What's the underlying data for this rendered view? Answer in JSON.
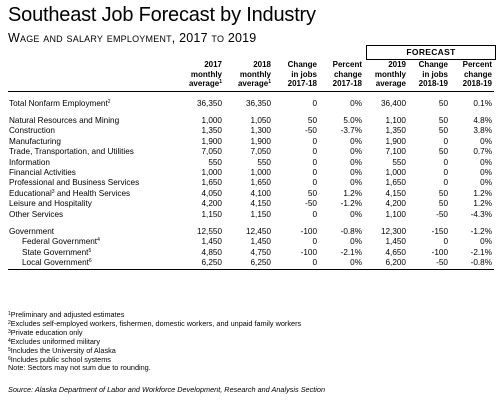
{
  "title": "Southeast Job Forecast by Industry",
  "subtitle": "Wage and salary employment, 2017 to 2019",
  "forecast_label": "FORECAST",
  "columns": [
    {
      "lines": [
        "2017",
        "monthly",
        "average"
      ],
      "sup": "1"
    },
    {
      "lines": [
        "2018",
        "monthly",
        "average"
      ],
      "sup": "1"
    },
    {
      "lines": [
        "Change",
        "in jobs",
        "2017-18"
      ],
      "sup": ""
    },
    {
      "lines": [
        "Percent",
        "change",
        "2017-18"
      ],
      "sup": ""
    },
    {
      "lines": [
        "2019",
        "monthly",
        "average"
      ],
      "sup": ""
    },
    {
      "lines": [
        "Change",
        "in jobs",
        "2018-19"
      ],
      "sup": ""
    },
    {
      "lines": [
        "Percent",
        "change",
        "2018-19"
      ],
      "sup": ""
    }
  ],
  "rows": [
    {
      "label": "Total Nonfarm Employment",
      "sup": "2",
      "values": [
        "36,350",
        "36,350",
        "0",
        "0%",
        "36,400",
        "50",
        "0.1%"
      ]
    },
    {
      "label": "Natural Resources and Mining",
      "sup": "",
      "values": [
        "1,000",
        "1,050",
        "50",
        "5.0%",
        "1,100",
        "50",
        "4.8%"
      ]
    },
    {
      "label": "Construction",
      "sup": "",
      "values": [
        "1,350",
        "1,300",
        "-50",
        "-3.7%",
        "1,350",
        "50",
        "3.8%"
      ]
    },
    {
      "label": "Manufacturing",
      "sup": "",
      "values": [
        "1,900",
        "1,900",
        "0",
        "0%",
        "1,900",
        "0",
        "0%"
      ]
    },
    {
      "label": "Trade, Transportation, and Utilities",
      "sup": "",
      "values": [
        "7,050",
        "7,050",
        "0",
        "0%",
        "7,100",
        "50",
        "0.7%"
      ]
    },
    {
      "label": "Information",
      "sup": "",
      "values": [
        "550",
        "550",
        "0",
        "0%",
        "550",
        "0",
        "0%"
      ]
    },
    {
      "label": "Financial Activities",
      "sup": "",
      "values": [
        "1,000",
        "1,000",
        "0",
        "0%",
        "1,000",
        "0",
        "0%"
      ]
    },
    {
      "label": "Professional and Business Services",
      "sup": "",
      "values": [
        "1,650",
        "1,650",
        "0",
        "0%",
        "1,650",
        "0",
        "0%"
      ]
    },
    {
      "label": "Educational",
      "sup": "3",
      "label_rest": " and Health Services",
      "values": [
        "4,050",
        "4,100",
        "50",
        "1.2%",
        "4,150",
        "50",
        "1.2%"
      ]
    },
    {
      "label": "Leisure and Hospitality",
      "sup": "",
      "values": [
        "4,200",
        "4,150",
        "-50",
        "-1.2%",
        "4,200",
        "50",
        "1.2%"
      ]
    },
    {
      "label": "Other Services",
      "sup": "",
      "values": [
        "1,150",
        "1,150",
        "0",
        "0%",
        "1,100",
        "-50",
        "-4.3%"
      ]
    },
    {
      "label": "Government",
      "sup": "",
      "values": [
        "12,550",
        "12,450",
        "-100",
        "-0.8%",
        "12,300",
        "-150",
        "-1.2%"
      ]
    },
    {
      "label": "Federal Government",
      "sup": "4",
      "values": [
        "1,450",
        "1,450",
        "0",
        "0%",
        "1,450",
        "0",
        "0%"
      ]
    },
    {
      "label": "State Government",
      "sup": "5",
      "values": [
        "4,850",
        "4,750",
        "-100",
        "-2.1%",
        "4,650",
        "-100",
        "-2.1%"
      ]
    },
    {
      "label": "Local Government",
      "sup": "6",
      "values": [
        "6,250",
        "6,250",
        "0",
        "0%",
        "6,200",
        "-50",
        "-0.8%"
      ]
    }
  ],
  "footnotes": [
    {
      "sup": "1",
      "text": "Preliminary and adjusted estimates"
    },
    {
      "sup": "2",
      "text": "Excludes self-employed workers, fishermen, domestic workers, and unpaid family workers"
    },
    {
      "sup": "3",
      "text": "Private education only"
    },
    {
      "sup": "4",
      "text": "Excludes uniformed military"
    },
    {
      "sup": "5",
      "text": "Includes the University of Alaska"
    },
    {
      "sup": "6",
      "text": "Includes public school systems"
    }
  ],
  "note": "Note: Sectors may not sum due to rounding.",
  "source": "Source: Alaska Department of Labor and Workforce Development, Research and Analysis Section"
}
